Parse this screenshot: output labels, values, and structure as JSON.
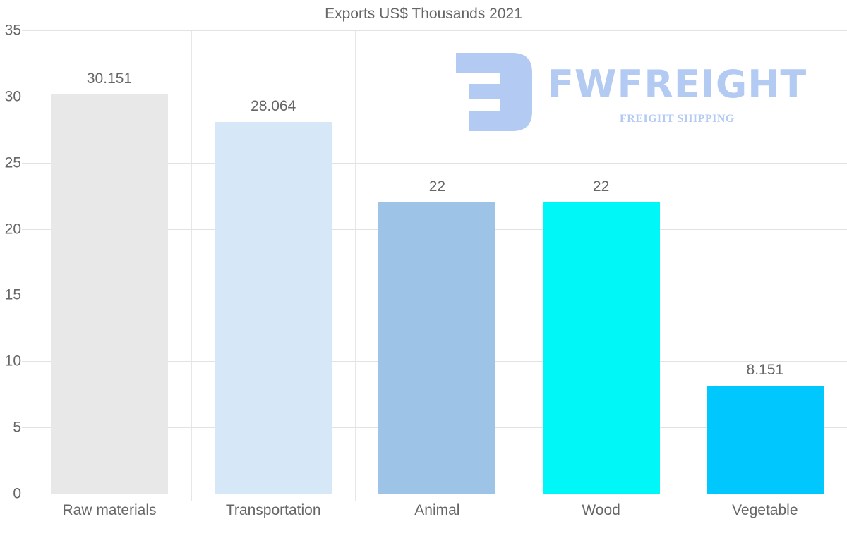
{
  "chart_data": {
    "type": "bar",
    "title": "Exports US$ Thousands 2021",
    "xlabel": "",
    "ylabel": "",
    "categories": [
      "Raw materials",
      "Transportation",
      "Animal",
      "Wood",
      "Vegetable"
    ],
    "values": [
      30.151,
      28.064,
      22,
      22,
      8.151
    ],
    "value_labels": [
      "30.151",
      "28.064",
      "22",
      "22",
      "8.151"
    ],
    "colors": [
      "#e8e8e8",
      "#d6e8f8",
      "#9dc3e6",
      "#00f7f7",
      "#00c8ff"
    ],
    "ylim": [
      0,
      35
    ],
    "yticks": [
      0,
      5,
      10,
      15,
      20,
      25,
      30,
      35
    ],
    "grid": true,
    "legend": null
  },
  "watermark": {
    "brand": "FWFREIGHT",
    "tagline": "FREIGHT SHIPPING",
    "color": "#b3cbf2"
  },
  "yticks_text": [
    "0",
    "5",
    "10",
    "15",
    "20",
    "25",
    "30",
    "35"
  ]
}
